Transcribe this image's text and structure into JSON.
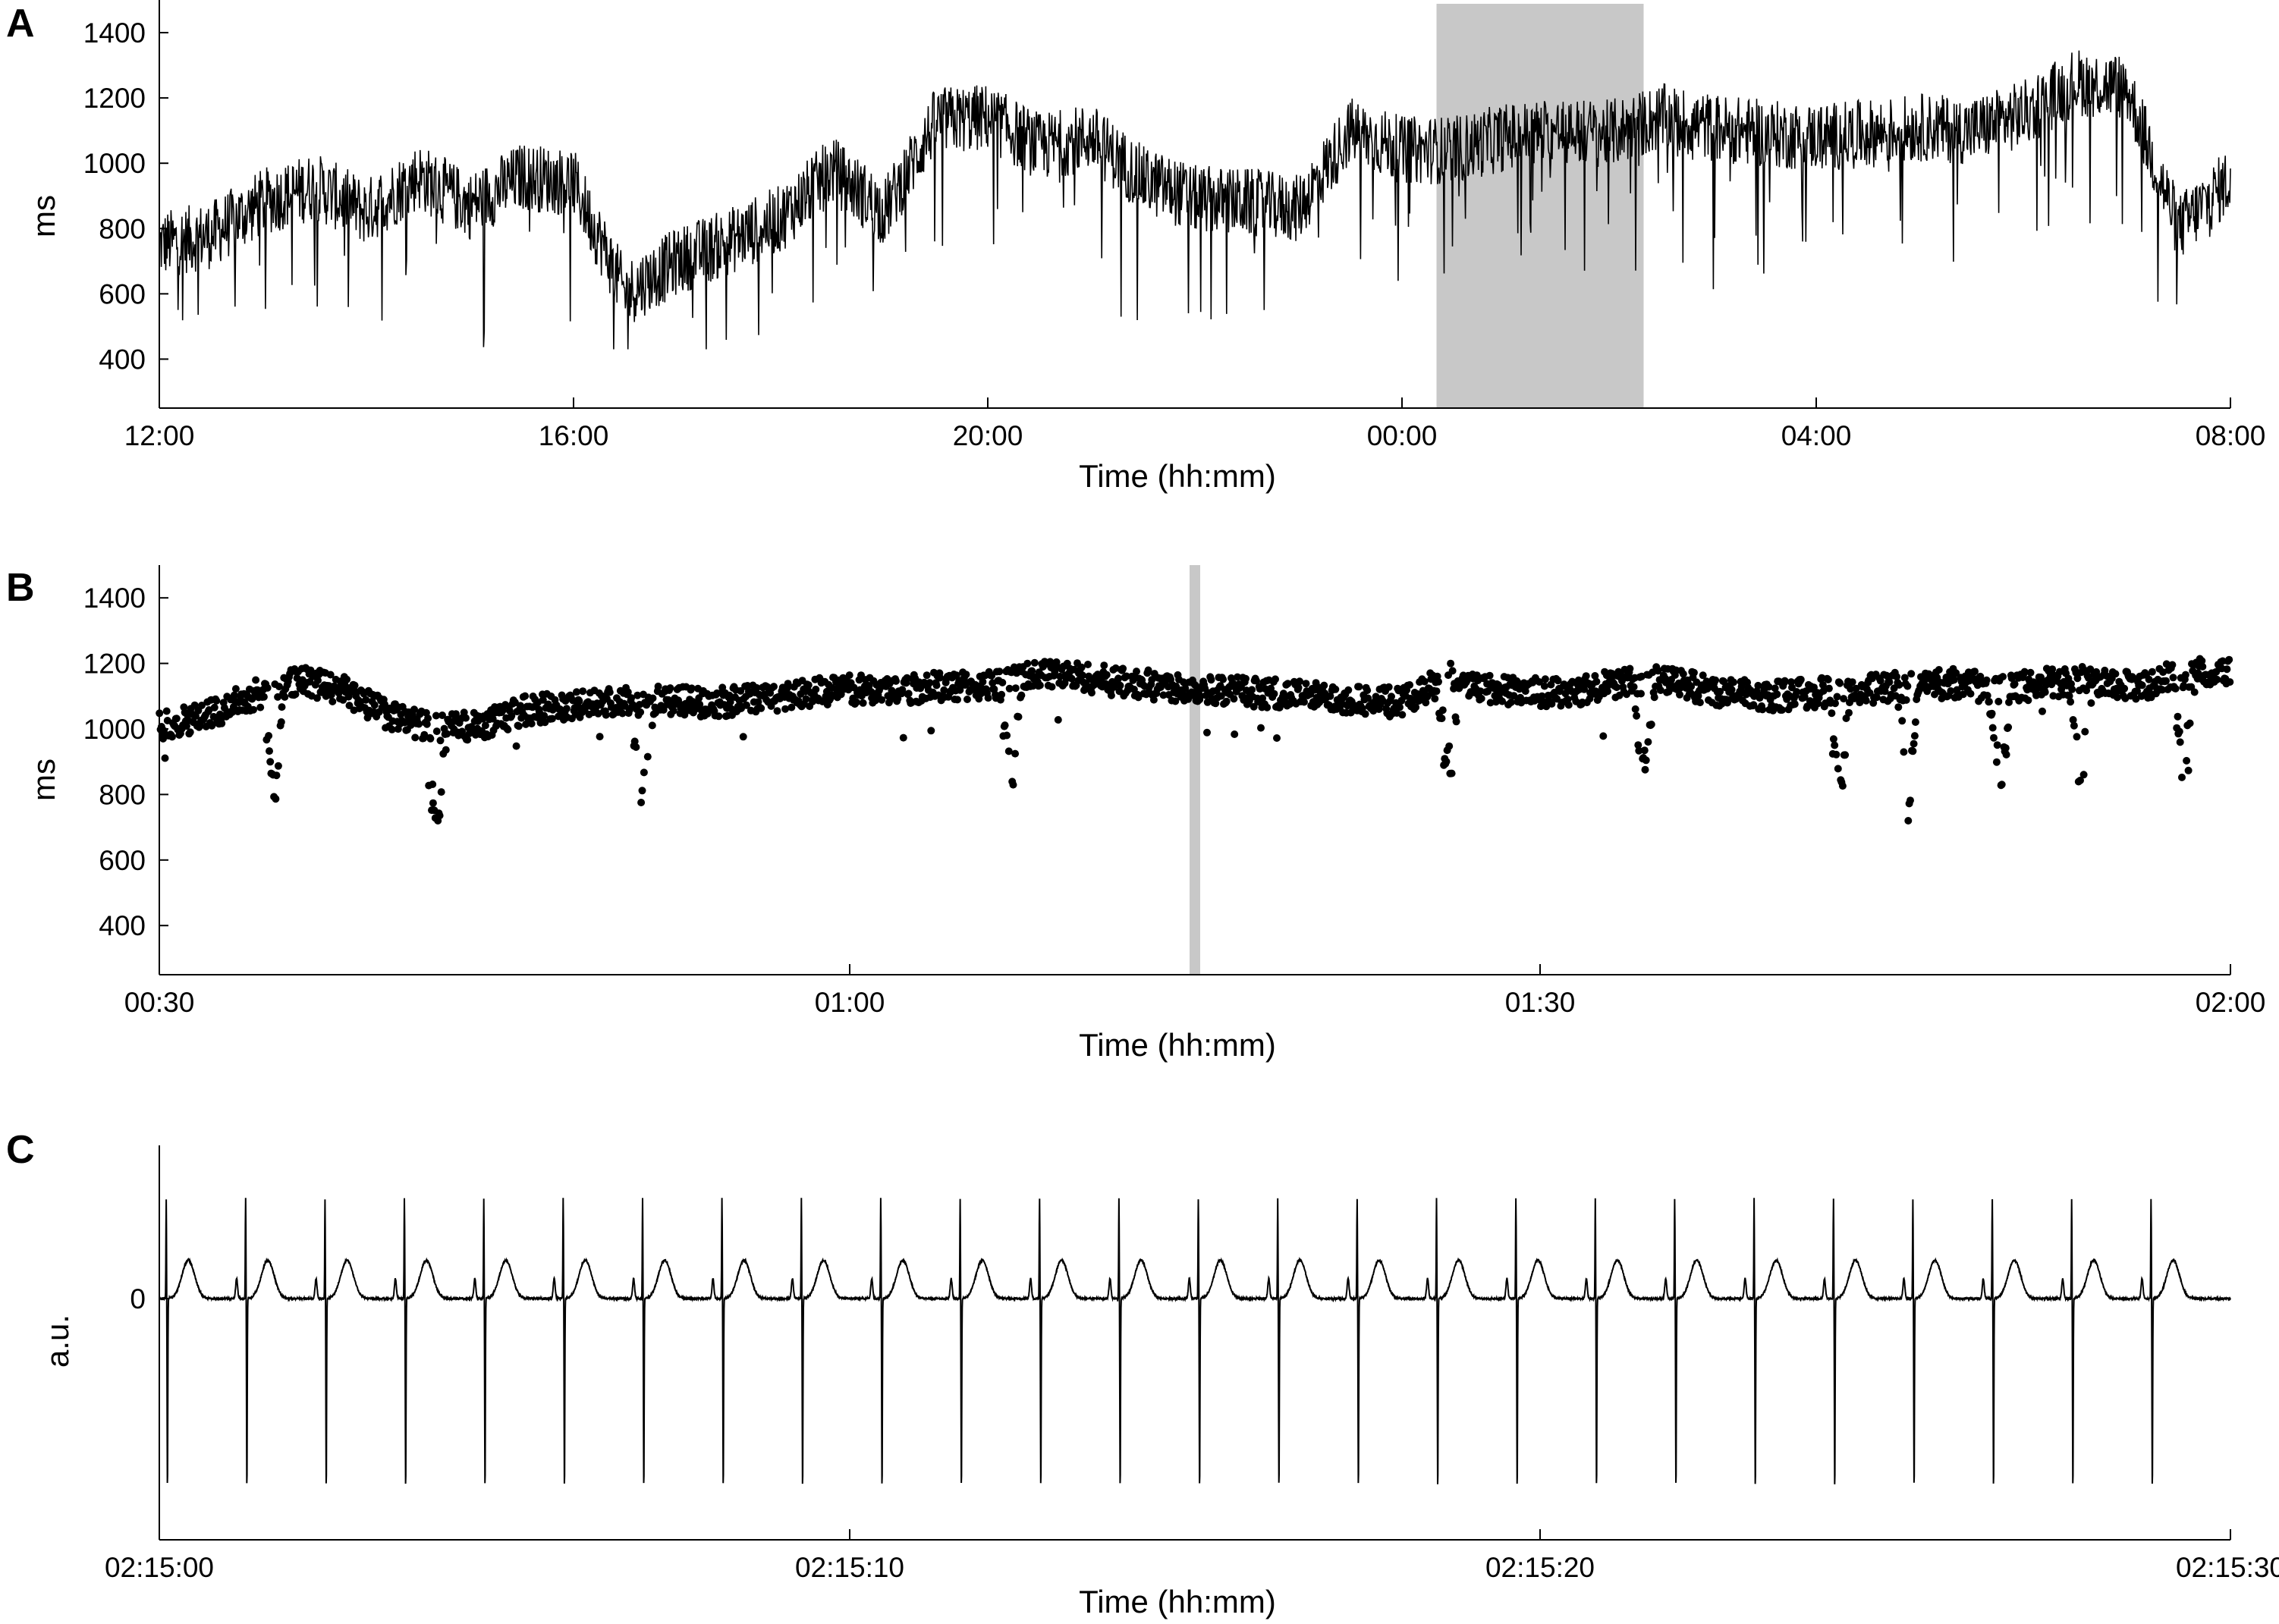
{
  "figure": {
    "colors": {
      "trace": "#000000",
      "highlight": "#c8c8c8",
      "axis": "#000000"
    }
  },
  "chart_data": [
    {
      "panel": "A",
      "type": "line",
      "xlabel": "Time (hh:mm)",
      "ylabel": "ms",
      "xticks": [
        "12:00",
        "16:00",
        "20:00",
        "00:00",
        "04:00",
        "08:00"
      ],
      "yticks": [
        400,
        600,
        800,
        1000,
        1200,
        1400
      ],
      "xlim_hours": [
        0,
        20
      ],
      "ylim": [
        250,
        1500
      ],
      "highlight_time": [
        "00:20",
        "02:20"
      ],
      "series": [
        {
          "x_time": [
            "12:00",
            "12:30",
            "13:00",
            "13:30",
            "14:00",
            "14:30",
            "15:00",
            "15:30",
            "16:00",
            "16:30",
            "17:00",
            "17:30",
            "18:00",
            "18:30",
            "19:00",
            "19:30",
            "20:00",
            "20:30",
            "21:00",
            "21:30",
            "22:00",
            "22:30",
            "23:00",
            "23:30",
            "00:00",
            "00:30",
            "01:00",
            "01:30",
            "02:00",
            "02:30",
            "03:00",
            "03:30",
            "04:00",
            "04:30",
            "05:00",
            "05:30",
            "06:00",
            "06:30",
            "07:00",
            "07:30",
            "08:00"
          ],
          "values": [
            750,
            780,
            880,
            930,
            850,
            960,
            870,
            960,
            940,
            600,
            700,
            760,
            830,
            980,
            850,
            1130,
            1140,
            1050,
            1080,
            950,
            890,
            880,
            860,
            1100,
            1040,
            1040,
            1080,
            1100,
            1090,
            1140,
            1110,
            1090,
            1080,
            1090,
            1110,
            1100,
            1150,
            1250,
            1230,
            800,
            950
          ]
        }
      ]
    },
    {
      "panel": "B",
      "type": "scatter",
      "xlabel": "Time (hh:mm)",
      "ylabel": "ms",
      "xticks": [
        "00:30",
        "01:00",
        "01:30",
        "02:00"
      ],
      "yticks": [
        400,
        600,
        800,
        1000,
        1200,
        1400
      ],
      "xlim_minutes": [
        30,
        120
      ],
      "ylim": [
        250,
        1500
      ],
      "highlight_time": "01:15",
      "series": [
        {
          "x_minutes": [
            30,
            32,
            34,
            36,
            38,
            40,
            42,
            44,
            46,
            48,
            50,
            52,
            54,
            56,
            58,
            60,
            62,
            64,
            66,
            68,
            70,
            72,
            74,
            76,
            78,
            80,
            82,
            84,
            86,
            88,
            90,
            92,
            94,
            96,
            98,
            100,
            102,
            104,
            106,
            108,
            110,
            112,
            114,
            116,
            118,
            120
          ],
          "values": [
            1010,
            1040,
            1100,
            1150,
            1120,
            1040,
            1000,
            1010,
            1060,
            1070,
            1080,
            1090,
            1080,
            1090,
            1110,
            1120,
            1120,
            1130,
            1130,
            1170,
            1160,
            1140,
            1130,
            1120,
            1110,
            1100,
            1090,
            1080,
            1160,
            1120,
            1110,
            1120,
            1150,
            1140,
            1110,
            1100,
            1110,
            1120,
            1130,
            1140,
            1120,
            1140,
            1150,
            1130,
            1170,
            1180
          ]
        }
      ]
    },
    {
      "panel": "C",
      "type": "line",
      "xlabel": "Time (hh:mm)",
      "ylabel": "a.u.",
      "xticks": [
        "02:15:00",
        "02:15:10",
        "02:15:20",
        "02:15:30"
      ],
      "yticks": [
        0
      ],
      "xlim_seconds": [
        0,
        30
      ],
      "ylim": [
        -1.35,
        1.15
      ],
      "beat_times_s": [
        0.1,
        1.25,
        2.4,
        3.55,
        4.7,
        5.85,
        7.0,
        8.15,
        9.3,
        10.45,
        11.6,
        12.75,
        13.9,
        15.05,
        16.2,
        17.35,
        18.5,
        19.65,
        20.8,
        21.95,
        23.1,
        24.25,
        25.4,
        26.55,
        27.7,
        28.85
      ],
      "r_peak_amplitude": 0.6,
      "s_wave_amplitude": -1.15
    }
  ]
}
